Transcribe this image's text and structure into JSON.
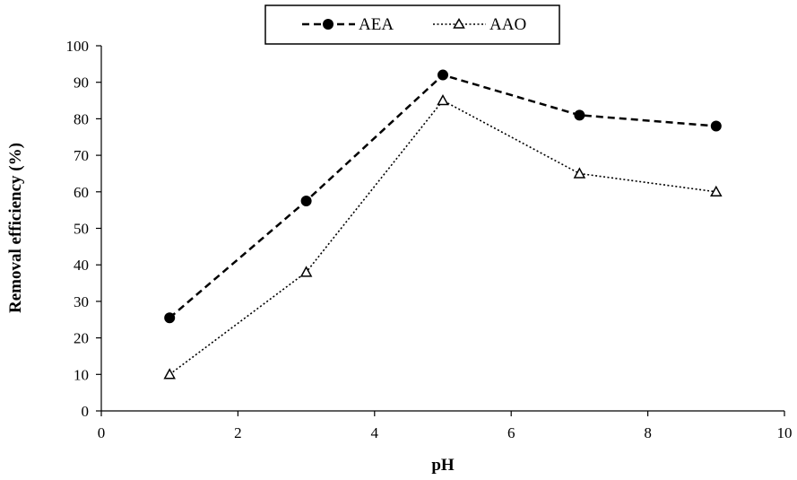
{
  "chart_data": {
    "type": "line",
    "title": "",
    "xlabel": "pH",
    "ylabel": "Removal efficiency (%)",
    "xlim": [
      0,
      10
    ],
    "ylim": [
      0,
      100
    ],
    "xticks": [
      0,
      2,
      4,
      6,
      8,
      10
    ],
    "yticks": [
      0,
      10,
      20,
      30,
      40,
      50,
      60,
      70,
      80,
      90,
      100
    ],
    "grid": false,
    "legend_position": "top-center",
    "x": [
      1,
      3,
      5,
      7,
      9
    ],
    "series": [
      {
        "name": "AEA",
        "values": [
          25.5,
          57.5,
          92,
          81,
          78
        ],
        "line_style": "dashed",
        "marker": "filled-circle",
        "color": "#000000"
      },
      {
        "name": "AAO",
        "values": [
          10,
          38,
          85,
          65,
          60
        ],
        "line_style": "dotted",
        "marker": "open-triangle",
        "color": "#000000"
      }
    ]
  }
}
